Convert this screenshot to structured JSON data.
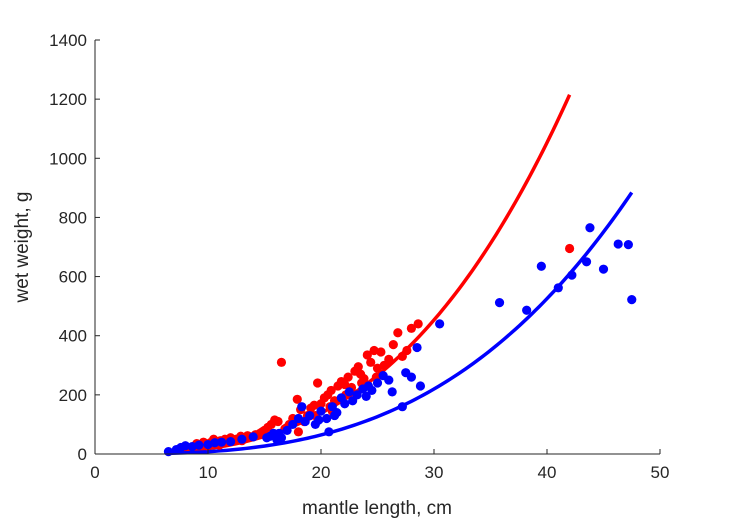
{
  "chart_data": {
    "type": "scatter",
    "xlabel": "mantle length, cm",
    "ylabel": "wet weight, g",
    "xlim": [
      0,
      50
    ],
    "ylim": [
      0,
      1400
    ],
    "xticks": [
      "0",
      "10",
      "20",
      "30",
      "40",
      "50"
    ],
    "yticks": [
      "0",
      "200",
      "400",
      "600",
      "800",
      "1000",
      "1200",
      "1400"
    ],
    "grid": false,
    "legend": "none",
    "series": [
      {
        "color": "#ff0000",
        "points": [
          [
            9.0,
            35
          ],
          [
            9.3,
            30
          ],
          [
            9.6,
            40
          ],
          [
            9.9,
            28
          ],
          [
            10.2,
            38
          ],
          [
            10.5,
            50
          ],
          [
            10.7,
            40
          ],
          [
            10.9,
            32
          ],
          [
            11.1,
            45
          ],
          [
            11.3,
            38
          ],
          [
            11.5,
            50
          ],
          [
            11.8,
            42
          ],
          [
            12.0,
            55
          ],
          [
            12.3,
            45
          ],
          [
            12.6,
            48
          ],
          [
            12.9,
            60
          ],
          [
            13.2,
            55
          ],
          [
            13.5,
            62
          ],
          [
            13.8,
            58
          ],
          [
            14.2,
            65
          ],
          [
            14.6,
            70
          ],
          [
            15.0,
            80
          ],
          [
            15.3,
            90
          ],
          [
            15.6,
            100
          ],
          [
            15.9,
            115
          ],
          [
            16.2,
            110
          ],
          [
            16.5,
            310
          ],
          [
            16.8,
            85
          ],
          [
            17.2,
            100
          ],
          [
            17.5,
            120
          ],
          [
            17.9,
            185
          ],
          [
            18.2,
            150
          ],
          [
            18.5,
            110
          ],
          [
            18.8,
            130
          ],
          [
            19.1,
            155
          ],
          [
            19.4,
            165
          ],
          [
            19.7,
            240
          ],
          [
            20.0,
            170
          ],
          [
            20.3,
            190
          ],
          [
            20.6,
            200
          ],
          [
            20.9,
            215
          ],
          [
            21.2,
            180
          ],
          [
            21.5,
            230
          ],
          [
            21.8,
            245
          ],
          [
            22.1,
            235
          ],
          [
            22.4,
            260
          ],
          [
            22.7,
            225
          ],
          [
            23.0,
            280
          ],
          [
            23.3,
            295
          ],
          [
            23.5,
            270
          ],
          [
            23.8,
            255
          ],
          [
            24.1,
            335
          ],
          [
            24.4,
            310
          ],
          [
            24.7,
            350
          ],
          [
            25.0,
            290
          ],
          [
            25.3,
            345
          ],
          [
            25.6,
            300
          ],
          [
            26.0,
            320
          ],
          [
            26.4,
            370
          ],
          [
            26.8,
            410
          ],
          [
            27.2,
            330
          ],
          [
            27.6,
            350
          ],
          [
            28.0,
            425
          ],
          [
            28.6,
            440
          ],
          [
            18.0,
            75
          ],
          [
            17.0,
            90
          ],
          [
            16.0,
            60
          ],
          [
            14.8,
            75
          ],
          [
            13.0,
            45
          ],
          [
            12.5,
            50
          ],
          [
            11.0,
            30
          ],
          [
            21.0,
            145
          ],
          [
            22.2,
            200
          ],
          [
            23.6,
            240
          ],
          [
            24.9,
            260
          ],
          [
            19.5,
            130
          ],
          [
            20.8,
            160
          ],
          [
            42.0,
            695
          ]
        ],
        "fit": {
          "a": 0.0213,
          "b": 2.93,
          "xmin": 6.5,
          "xmax": 42.0
        }
      },
      {
        "color": "#0000ff",
        "points": [
          [
            6.5,
            8
          ],
          [
            7.2,
            15
          ],
          [
            7.6,
            22
          ],
          [
            8.0,
            28
          ],
          [
            8.6,
            25
          ],
          [
            9.2,
            30
          ],
          [
            10.0,
            32
          ],
          [
            10.6,
            38
          ],
          [
            11.2,
            40
          ],
          [
            12.0,
            42
          ],
          [
            13.0,
            50
          ],
          [
            14.0,
            58
          ],
          [
            15.5,
            60
          ],
          [
            15.8,
            70
          ],
          [
            16.1,
            48
          ],
          [
            16.5,
            55
          ],
          [
            17.0,
            80
          ],
          [
            17.5,
            100
          ],
          [
            18.0,
            120
          ],
          [
            18.3,
            160
          ],
          [
            18.6,
            110
          ],
          [
            19.0,
            130
          ],
          [
            19.5,
            100
          ],
          [
            20.0,
            145
          ],
          [
            20.5,
            120
          ],
          [
            20.7,
            75
          ],
          [
            21.0,
            160
          ],
          [
            21.4,
            140
          ],
          [
            21.8,
            190
          ],
          [
            22.1,
            170
          ],
          [
            22.5,
            210
          ],
          [
            22.8,
            180
          ],
          [
            23.2,
            200
          ],
          [
            23.7,
            220
          ],
          [
            24.0,
            195
          ],
          [
            24.5,
            215
          ],
          [
            25.0,
            240
          ],
          [
            25.5,
            265
          ],
          [
            26.0,
            250
          ],
          [
            27.2,
            160
          ],
          [
            27.5,
            275
          ],
          [
            28.0,
            260
          ],
          [
            28.5,
            360
          ],
          [
            28.8,
            230
          ],
          [
            30.5,
            440
          ],
          [
            35.8,
            512
          ],
          [
            38.2,
            486
          ],
          [
            39.5,
            635
          ],
          [
            41.0,
            562
          ],
          [
            42.2,
            605
          ],
          [
            43.5,
            650
          ],
          [
            43.8,
            765
          ],
          [
            45.0,
            625
          ],
          [
            46.3,
            710
          ],
          [
            47.2,
            708
          ],
          [
            47.5,
            522
          ],
          [
            19.8,
            115
          ],
          [
            21.2,
            130
          ],
          [
            16.3,
            70
          ],
          [
            15.2,
            55
          ],
          [
            24.2,
            230
          ],
          [
            26.3,
            210
          ]
        ],
        "fit": {
          "a": 0.00735,
          "b": 3.03,
          "xmin": 6.5,
          "xmax": 47.5
        }
      }
    ]
  }
}
